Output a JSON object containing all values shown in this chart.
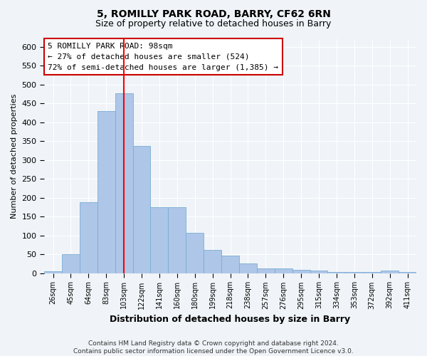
{
  "title": "5, ROMILLY PARK ROAD, BARRY, CF62 6RN",
  "subtitle": "Size of property relative to detached houses in Barry",
  "xlabel": "Distribution of detached houses by size in Barry",
  "ylabel": "Number of detached properties",
  "categories": [
    "26sqm",
    "45sqm",
    "64sqm",
    "83sqm",
    "103sqm",
    "122sqm",
    "141sqm",
    "160sqm",
    "180sqm",
    "199sqm",
    "218sqm",
    "238sqm",
    "257sqm",
    "276sqm",
    "295sqm",
    "315sqm",
    "334sqm",
    "353sqm",
    "372sqm",
    "392sqm",
    "411sqm"
  ],
  "values": [
    6,
    51,
    188,
    430,
    476,
    338,
    175,
    175,
    107,
    62,
    46,
    25,
    12,
    12,
    9,
    7,
    4,
    4,
    4,
    7,
    4
  ],
  "bar_color": "#aec6e8",
  "bar_edge_color": "#7aadd4",
  "red_line_index": 4,
  "annotation_text": "5 ROMILLY PARK ROAD: 98sqm\n← 27% of detached houses are smaller (524)\n72% of semi-detached houses are larger (1,385) →",
  "annotation_box_facecolor": "#ffffff",
  "annotation_box_edgecolor": "#cc0000",
  "ylim": [
    0,
    620
  ],
  "yticks": [
    0,
    50,
    100,
    150,
    200,
    250,
    300,
    350,
    400,
    450,
    500,
    550,
    600
  ],
  "footer": "Contains HM Land Registry data © Crown copyright and database right 2024.\nContains public sector information licensed under the Open Government Licence v3.0.",
  "bg_color": "#f0f4f8",
  "plot_bg_color": "#f0f4f8",
  "grid_color": "#ffffff",
  "title_fontsize": 10,
  "subtitle_fontsize": 9,
  "xlabel_fontsize": 9,
  "ylabel_fontsize": 8
}
